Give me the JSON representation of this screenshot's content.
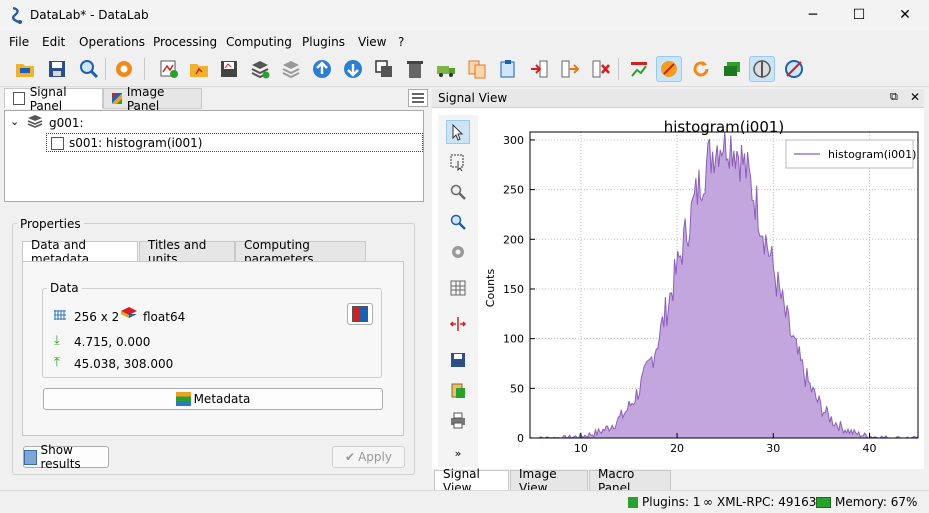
{
  "window": {
    "title": "DataLab* - DataLab",
    "minimize": "─",
    "maximize": "☐",
    "close": "✕"
  },
  "menu": [
    "File",
    "Edit",
    "Operations",
    "Processing",
    "Computing",
    "Plugins",
    "View",
    "?"
  ],
  "left_tabs": {
    "signal": "Signal Panel",
    "image": "Image Panel"
  },
  "tree": {
    "group": "g001:",
    "item": "s001: histogram(i001)"
  },
  "properties": {
    "title": "Properties",
    "tabs": [
      "Data and metadata",
      "Titles and units",
      "Computing parameters"
    ],
    "data_group": "Data",
    "size": "256 x 2",
    "dtype": "float64",
    "xmin_ymin": "4.715, 0.000",
    "xmax_ymax": "45.038, 308.000",
    "metadata_button": "Metadata",
    "show_results": "Show results",
    "apply": "Apply"
  },
  "signal_view": {
    "title": "Signal View"
  },
  "bottom_tabs": [
    "Signal View",
    "Image View",
    "Macro Panel"
  ],
  "status": {
    "plugins": "Plugins: 1",
    "xmlrpc": "XML-RPC: 49163",
    "memory": "Memory: 67%"
  },
  "chart_data": {
    "type": "area",
    "title": "histogram(i001)",
    "xlabel": "",
    "ylabel": "Counts",
    "xlim": [
      4.715,
      45.038
    ],
    "ylim": [
      0,
      308
    ],
    "xticks": [
      10,
      20,
      30,
      40
    ],
    "yticks": [
      0,
      50,
      100,
      150,
      200,
      250,
      300
    ],
    "grid": true,
    "legend_position": "top-right",
    "series": [
      {
        "name": "histogram(i001)",
        "color": "#8a5fb8",
        "fill": "#c3a6dd",
        "distribution": {
          "mean": 25.0,
          "sd": 4.7,
          "peak": 300,
          "bins": 256
        }
      }
    ]
  }
}
